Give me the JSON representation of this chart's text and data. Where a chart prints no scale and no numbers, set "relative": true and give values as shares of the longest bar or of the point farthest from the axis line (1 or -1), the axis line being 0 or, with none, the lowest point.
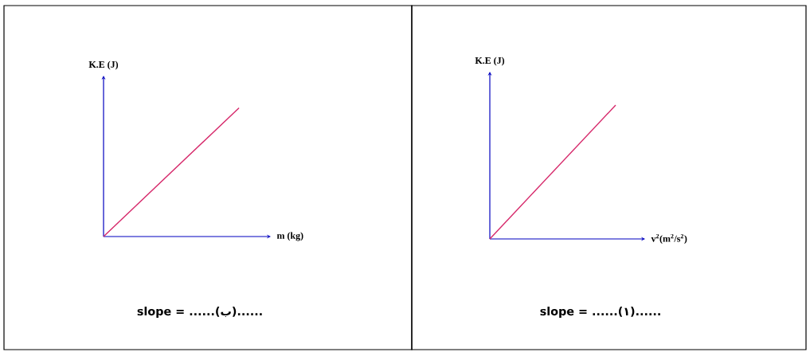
{
  "chart_data": [
    {
      "type": "line",
      "relative": true,
      "xlabel": "m (kg)",
      "ylabel": "K.E (J)",
      "categories": [
        null,
        null
      ],
      "series": [
        {
          "color": "#d6286a",
          "values": [
            0,
            1
          ]
        }
      ],
      "annotations": [
        "slope = ......(ب)......"
      ]
    },
    {
      "type": "line",
      "relative": true,
      "xlabel": "v$^{2}$(m$^{2}$/s$^{2}$)",
      "ylabel": "K.E (J)",
      "categories": [
        null,
        null
      ],
      "series": [
        {
          "color": "#d6286a",
          "values": [
            0,
            1
          ]
        }
      ],
      "annotations": [
        "slope = ......(١)......"
      ]
    }
  ]
}
